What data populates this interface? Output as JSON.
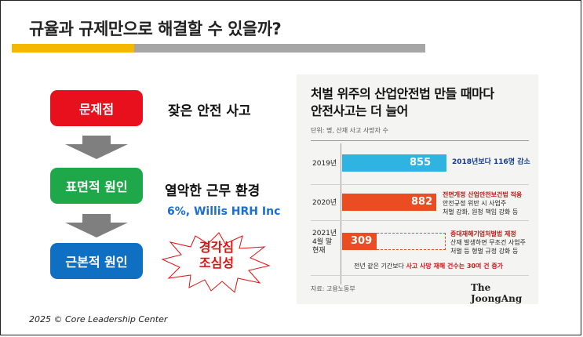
{
  "slide": {
    "title": "규율과 규제만으로 해결할 수 있을까?",
    "footer": "2025 © Core Leadership Center"
  },
  "flow": {
    "steps": [
      {
        "label": "문제점",
        "description": "잦은 안전 사고"
      },
      {
        "label": "표면적 원인",
        "description": "열악한 근무 환경",
        "note": "6%, Willis HRH Inc"
      },
      {
        "label": "근본적 원인"
      }
    ],
    "burst_text": [
      "경각심",
      "조심성"
    ]
  },
  "colors": {
    "accent_yellow": "#f5b800",
    "bar_gray": "#a6a6a6",
    "step_red": "#e8101d",
    "step_green": "#1fa84a",
    "step_blue": "#0f6fc2",
    "arrow_gray": "#7f7f7f"
  },
  "news": {
    "title_line1": "처벌 위주의 산업안전법 만들 때마다",
    "title_line2": "안전사고는 더 늘어",
    "unit": "단위: 명, 산재 사고 사망자 수",
    "source": "자료: 고용노동부",
    "brand": "The JoongAng",
    "rows": [
      {
        "year": "2019년",
        "value": "855",
        "notes": [
          "2018년보다 116명 감소"
        ]
      },
      {
        "year": "2020년",
        "value": "882",
        "notes": [
          "전면개정 산업안전보건법 적용",
          "안전규정 위반 시 사업주",
          "처벌 강화, 원청 책임 강화 등"
        ]
      },
      {
        "year_lines": [
          "2021년",
          "4월 말",
          "현재"
        ],
        "value": "309",
        "notes": [
          "중대재해기업처벌법 제정",
          "산재 발생하면 무조건 사업주",
          "처벌 등 형벌 규정 강화 등"
        ]
      }
    ],
    "bottom_note_pre": "전년 같은 기간보다 ",
    "bottom_note_bold": "사고 사망 재해 건수는 30여 건 증가"
  },
  "chart_data": {
    "type": "bar",
    "title": "처벌 위주의 산업안전법 만들 때마다 안전사고는 더 늘어",
    "ylabel": "단위: 명, 산재 사고 사망자 수",
    "categories": [
      "2019년",
      "2020년",
      "2021년 4월 말 현재"
    ],
    "values": [
      855,
      882,
      309
    ]
  }
}
